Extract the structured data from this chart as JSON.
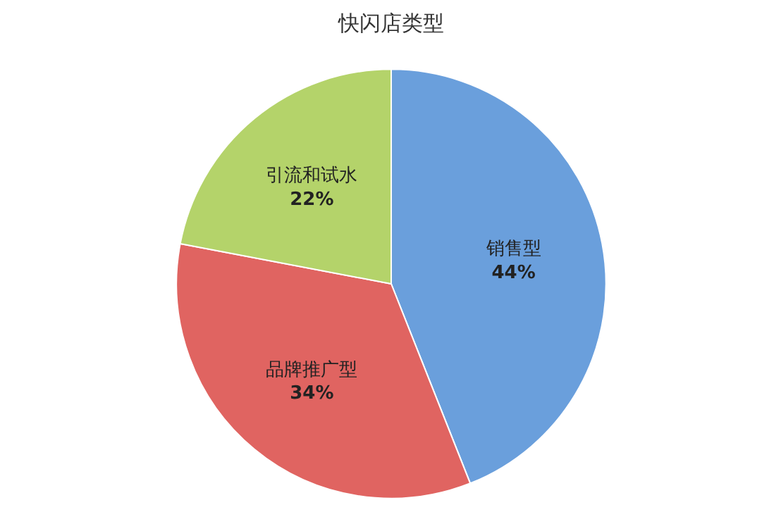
{
  "chart_data": {
    "type": "pie",
    "title": "快闪店类型",
    "categories": [
      "销售型",
      "品牌推广型",
      "引流和试水"
    ],
    "values": [
      44,
      34,
      22
    ],
    "value_labels": [
      "44%",
      "34%",
      "22%"
    ],
    "colors": [
      "#6a9fdc",
      "#e06461",
      "#b4d36a"
    ]
  }
}
